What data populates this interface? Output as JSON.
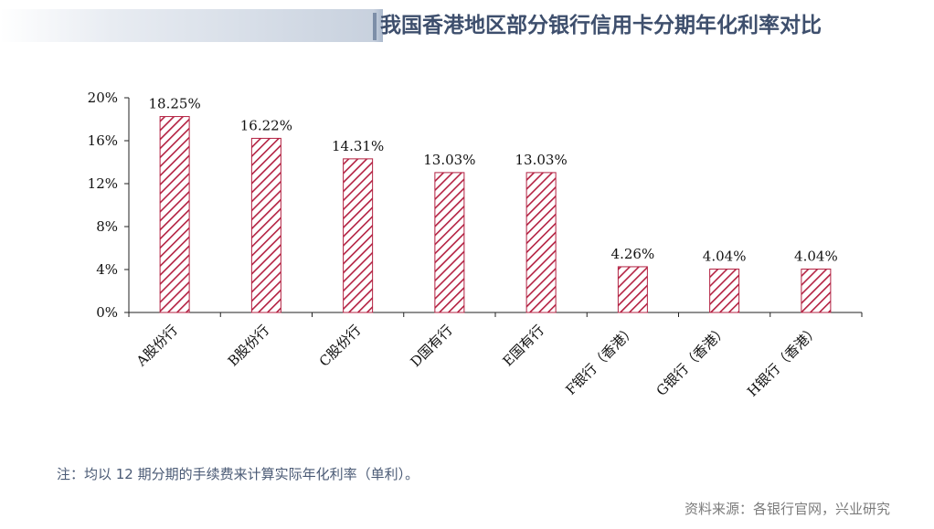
{
  "title": "我国香港地区部分银行信用卡分期年化利率对比",
  "note": "注：均以 12 期分期的手续费来计算实际年化利率（单利）。",
  "source": "资料来源：各银行官网，兴业研究",
  "colors": {
    "bar_stroke": "#b32041",
    "hatch": "#b32041",
    "title": "#3e4f6d"
  },
  "chart_data": {
    "type": "bar",
    "title": "",
    "xlabel": "",
    "ylabel": "",
    "categories": [
      "A股份行",
      "B股份行",
      "C股份行",
      "D国有行",
      "E国有行",
      "F银行（香港）",
      "G银行（香港）",
      "H银行（香港）"
    ],
    "values": [
      18.25,
      16.22,
      14.31,
      13.03,
      13.03,
      4.26,
      4.04,
      4.04
    ],
    "value_labels": [
      "18.25%",
      "16.22%",
      "14.31%",
      "13.03%",
      "13.03%",
      "4.26%",
      "4.04%",
      "4.04%"
    ],
    "yticks": [
      "0%",
      "4%",
      "8%",
      "12%",
      "16%",
      "20%"
    ],
    "ylim": [
      0,
      20
    ],
    "grid": false,
    "legend": "none",
    "fill": "diagonal-hatch"
  }
}
